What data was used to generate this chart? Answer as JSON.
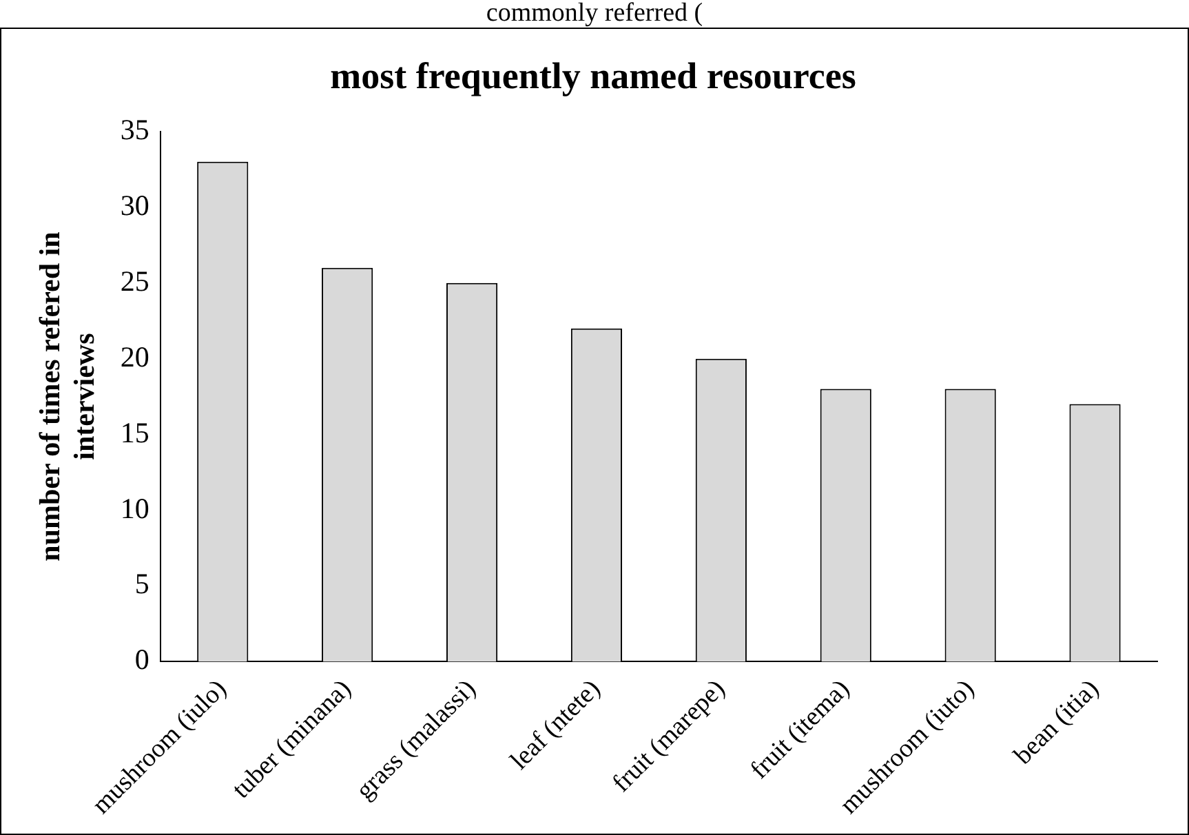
{
  "chart_data": {
    "type": "bar",
    "title": "most frequently named resources",
    "ylabel": "number of times refered in interviews",
    "annotations": [
      "commonly referred ("
    ],
    "categories": [
      "mushroom (iulo)",
      "tuber (minana)",
      "grass (malassi)",
      "leaf (ntete)",
      "fruit (marepe)",
      "fruit (itema)",
      "mushroom (iuto)",
      "bean (itia)"
    ],
    "values": [
      33,
      26,
      25,
      22,
      20,
      18,
      18,
      17
    ],
    "color": "#d9d9d9",
    "ylim": [
      0,
      35
    ],
    "yticks": [
      0,
      5,
      10,
      15,
      20,
      25,
      30,
      35
    ],
    "grid": false,
    "legend": false
  }
}
